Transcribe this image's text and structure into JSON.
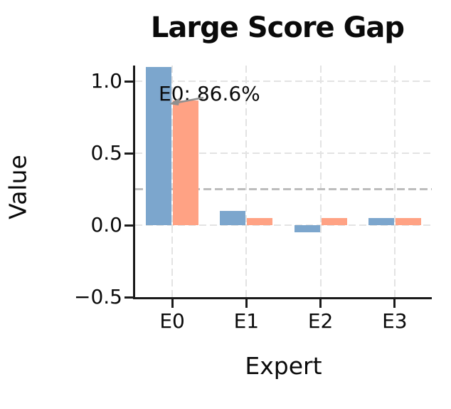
{
  "chart_data": {
    "type": "bar",
    "title": "Large Score Gap",
    "xlabel": "Expert",
    "ylabel": "Value",
    "categories": [
      "E0",
      "E1",
      "E2",
      "E3"
    ],
    "series": [
      {
        "name": "blue",
        "color": "#7ca6cd",
        "values": [
          1.1,
          0.1,
          -0.05,
          0.05
        ]
      },
      {
        "name": "orange",
        "color": "#ffa284",
        "values": [
          0.866,
          0.05,
          0.05,
          0.05
        ]
      }
    ],
    "ylim": [
      -0.5,
      1.11
    ],
    "yticks": [
      {
        "value": -0.5,
        "label": "−0.5"
      },
      {
        "value": 0.0,
        "label": "0.0"
      },
      {
        "value": 0.5,
        "label": "0.5"
      },
      {
        "value": 1.0,
        "label": "1.0"
      }
    ],
    "ygrid_values": [
      0.0,
      0.5,
      1.0
    ],
    "threshold_line": {
      "value": 0.25,
      "style": "dashed",
      "color": "#bdbdbd"
    },
    "annotation": {
      "text": "E0: 86.6%",
      "arrow": true,
      "target_series": "orange",
      "target_category": "E0",
      "target_value": 0.866
    },
    "grid": "dashed",
    "legend": "none",
    "colors": {
      "background": "#ffffff",
      "grid": "#e3e3e3",
      "threshold": "#bdbdbd",
      "axis": "#1a1a1a",
      "annotation_arrow": "#8f8f8f"
    }
  }
}
